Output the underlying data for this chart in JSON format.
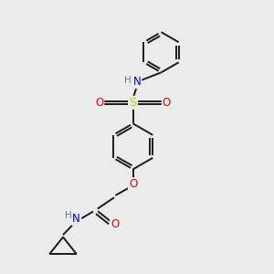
{
  "bg_color": "#ebebeb",
  "bond_color": "#1a1a1a",
  "bond_width": 1.4,
  "atom_colors": {
    "C": "#1a1a1a",
    "N": "#0000ee",
    "O": "#ee0000",
    "S": "#cccc00",
    "H": "#4a8a8a"
  },
  "font_size": 8.5
}
